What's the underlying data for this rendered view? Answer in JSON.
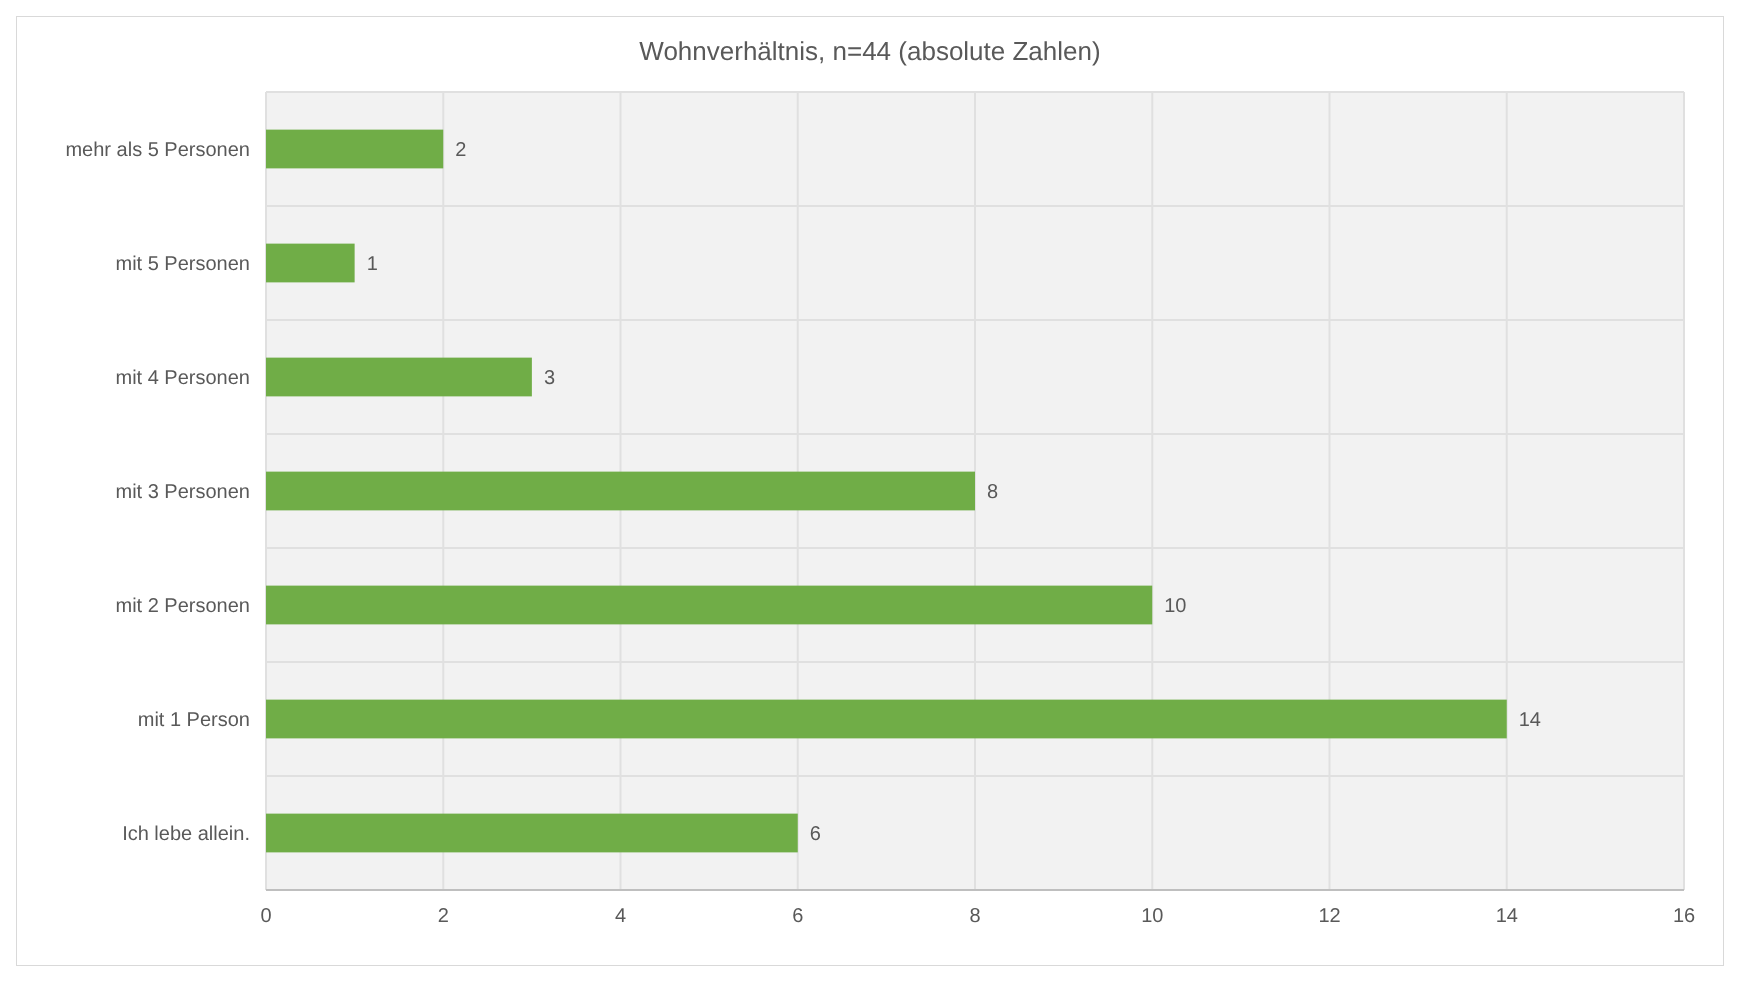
{
  "chart_data": {
    "type": "bar",
    "orientation": "horizontal",
    "title": "Wohnverhältnis, n=44 (absolute Zahlen)",
    "categories": [
      "mehr als 5 Personen",
      "mit 5 Personen",
      "mit 4 Personen",
      "mit 3 Personen",
      "mit 2 Personen",
      "mit 1 Person",
      "Ich lebe allein."
    ],
    "values": [
      2,
      1,
      3,
      8,
      10,
      14,
      6
    ],
    "color": "#70ad47",
    "xlim": [
      0,
      16
    ],
    "xticks": [
      0,
      2,
      4,
      6,
      8,
      10,
      12,
      14,
      16
    ],
    "grid": true,
    "data_labels": true
  }
}
